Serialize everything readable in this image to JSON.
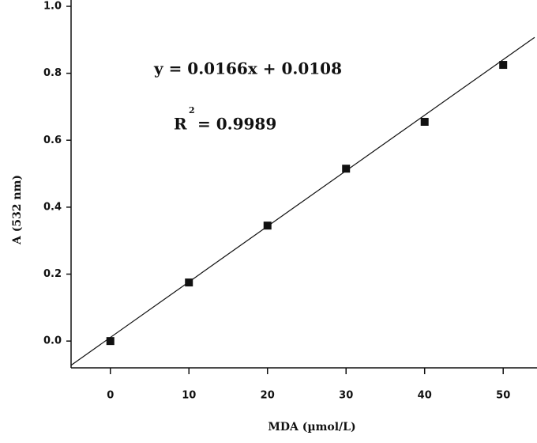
{
  "chart_data": {
    "type": "scatter",
    "x_label": "MDA (µmol/L)",
    "y_label": "A (532 nm)",
    "equation": "y = 0.0166x + 0.0108",
    "r_squared": {
      "symbol": "R",
      "exponent": "2",
      "text": "= 0.9989"
    },
    "fit_line": {
      "slope": 0.0166,
      "intercept": 0.0108
    },
    "x": [
      0,
      10,
      20,
      30,
      40,
      50
    ],
    "values": [
      0.0,
      0.175,
      0.345,
      0.515,
      0.655,
      0.825
    ],
    "color": "#111111",
    "xlim": [
      -5,
      54
    ],
    "ylim": [
      -0.08,
      1.0
    ],
    "xticks": [
      0,
      10,
      20,
      30,
      40,
      50
    ],
    "yticks": [
      {
        "value": 0,
        "label": "0.0"
      },
      {
        "value": 0.2,
        "label": "0.2"
      },
      {
        "value": 0.4,
        "label": "0.4"
      },
      {
        "value": 0.6,
        "label": "0.6"
      },
      {
        "value": 0.8,
        "label": "0.8"
      },
      {
        "value": 1.0,
        "label": "1.0"
      }
    ]
  }
}
